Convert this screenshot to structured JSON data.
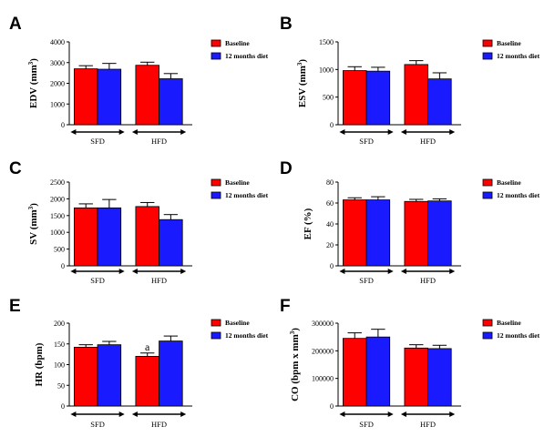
{
  "figure": {
    "colors": {
      "baseline": "#ff0000",
      "diet": "#1a1aff",
      "axis": "#000000"
    }
  },
  "chart_data": [
    {
      "type": "bar",
      "panel": "A",
      "ylabel": "EDV (mm",
      "ylabel_sup": "3",
      "ylabel_tail": ")",
      "ylim": [
        0,
        4000
      ],
      "yticks": [
        0,
        1000,
        2000,
        3000,
        4000
      ],
      "categories": [
        "SFD",
        "HFD"
      ],
      "series": [
        {
          "name": "Baseline",
          "values": [
            2700,
            2870
          ],
          "errors": [
            150,
            150
          ]
        },
        {
          "name": "12 months diet",
          "values": [
            2680,
            2220
          ],
          "errors": [
            280,
            250
          ]
        }
      ],
      "annotations": []
    },
    {
      "type": "bar",
      "panel": "B",
      "ylabel": "ESV (mm",
      "ylabel_sup": "3",
      "ylabel_tail": ")",
      "ylim": [
        0,
        1500
      ],
      "yticks": [
        0,
        500,
        1000,
        1500
      ],
      "categories": [
        "SFD",
        "HFD"
      ],
      "series": [
        {
          "name": "Baseline",
          "values": [
            980,
            1090
          ],
          "errors": [
            70,
            70
          ]
        },
        {
          "name": "12 months diet",
          "values": [
            970,
            830
          ],
          "errors": [
            70,
            110
          ]
        }
      ],
      "annotations": []
    },
    {
      "type": "bar",
      "panel": "C",
      "ylabel": "SV (mm",
      "ylabel_sup": "3",
      "ylabel_tail": ")",
      "ylim": [
        0,
        2500
      ],
      "yticks": [
        0,
        500,
        1000,
        1500,
        2000,
        2500
      ],
      "categories": [
        "SFD",
        "HFD"
      ],
      "series": [
        {
          "name": "Baseline",
          "values": [
            1730,
            1770
          ],
          "errors": [
            120,
            120
          ]
        },
        {
          "name": "12 months diet",
          "values": [
            1730,
            1380
          ],
          "errors": [
            250,
            150
          ]
        }
      ],
      "annotations": []
    },
    {
      "type": "bar",
      "panel": "D",
      "ylabel": "EF (%)",
      "ylabel_sup": "",
      "ylabel_tail": "",
      "ylim": [
        0,
        80
      ],
      "yticks": [
        0,
        20,
        40,
        60,
        80
      ],
      "categories": [
        "SFD",
        "HFD"
      ],
      "series": [
        {
          "name": "Baseline",
          "values": [
            63,
            61.5
          ],
          "errors": [
            2,
            2
          ]
        },
        {
          "name": "12 months diet",
          "values": [
            63,
            62
          ],
          "errors": [
            3,
            2
          ]
        }
      ],
      "annotations": []
    },
    {
      "type": "bar",
      "panel": "E",
      "ylabel": "HR (bpm)",
      "ylabel_sup": "",
      "ylabel_tail": "",
      "ylim": [
        0,
        200
      ],
      "yticks": [
        0,
        50,
        100,
        150,
        200
      ],
      "categories": [
        "SFD",
        "HFD"
      ],
      "series": [
        {
          "name": "Baseline",
          "values": [
            142,
            120
          ],
          "errors": [
            6,
            8
          ]
        },
        {
          "name": "12 months diet",
          "values": [
            148,
            157
          ],
          "errors": [
            8,
            12
          ]
        }
      ],
      "annotations": [
        {
          "text": "a",
          "category": "HFD",
          "series": "Baseline"
        }
      ]
    },
    {
      "type": "bar",
      "panel": "F",
      "ylabel": "CO (bpm x mm",
      "ylabel_sup": "3",
      "ylabel_tail": ")",
      "ylim": [
        0,
        300000
      ],
      "yticks": [
        0,
        100000,
        200000,
        300000
      ],
      "categories": [
        "SFD",
        "HFD"
      ],
      "series": [
        {
          "name": "Baseline",
          "values": [
            245000,
            210000
          ],
          "errors": [
            20000,
            12000
          ]
        },
        {
          "name": "12 months diet",
          "values": [
            250000,
            208000
          ],
          "errors": [
            28000,
            12000
          ]
        }
      ],
      "annotations": []
    }
  ]
}
